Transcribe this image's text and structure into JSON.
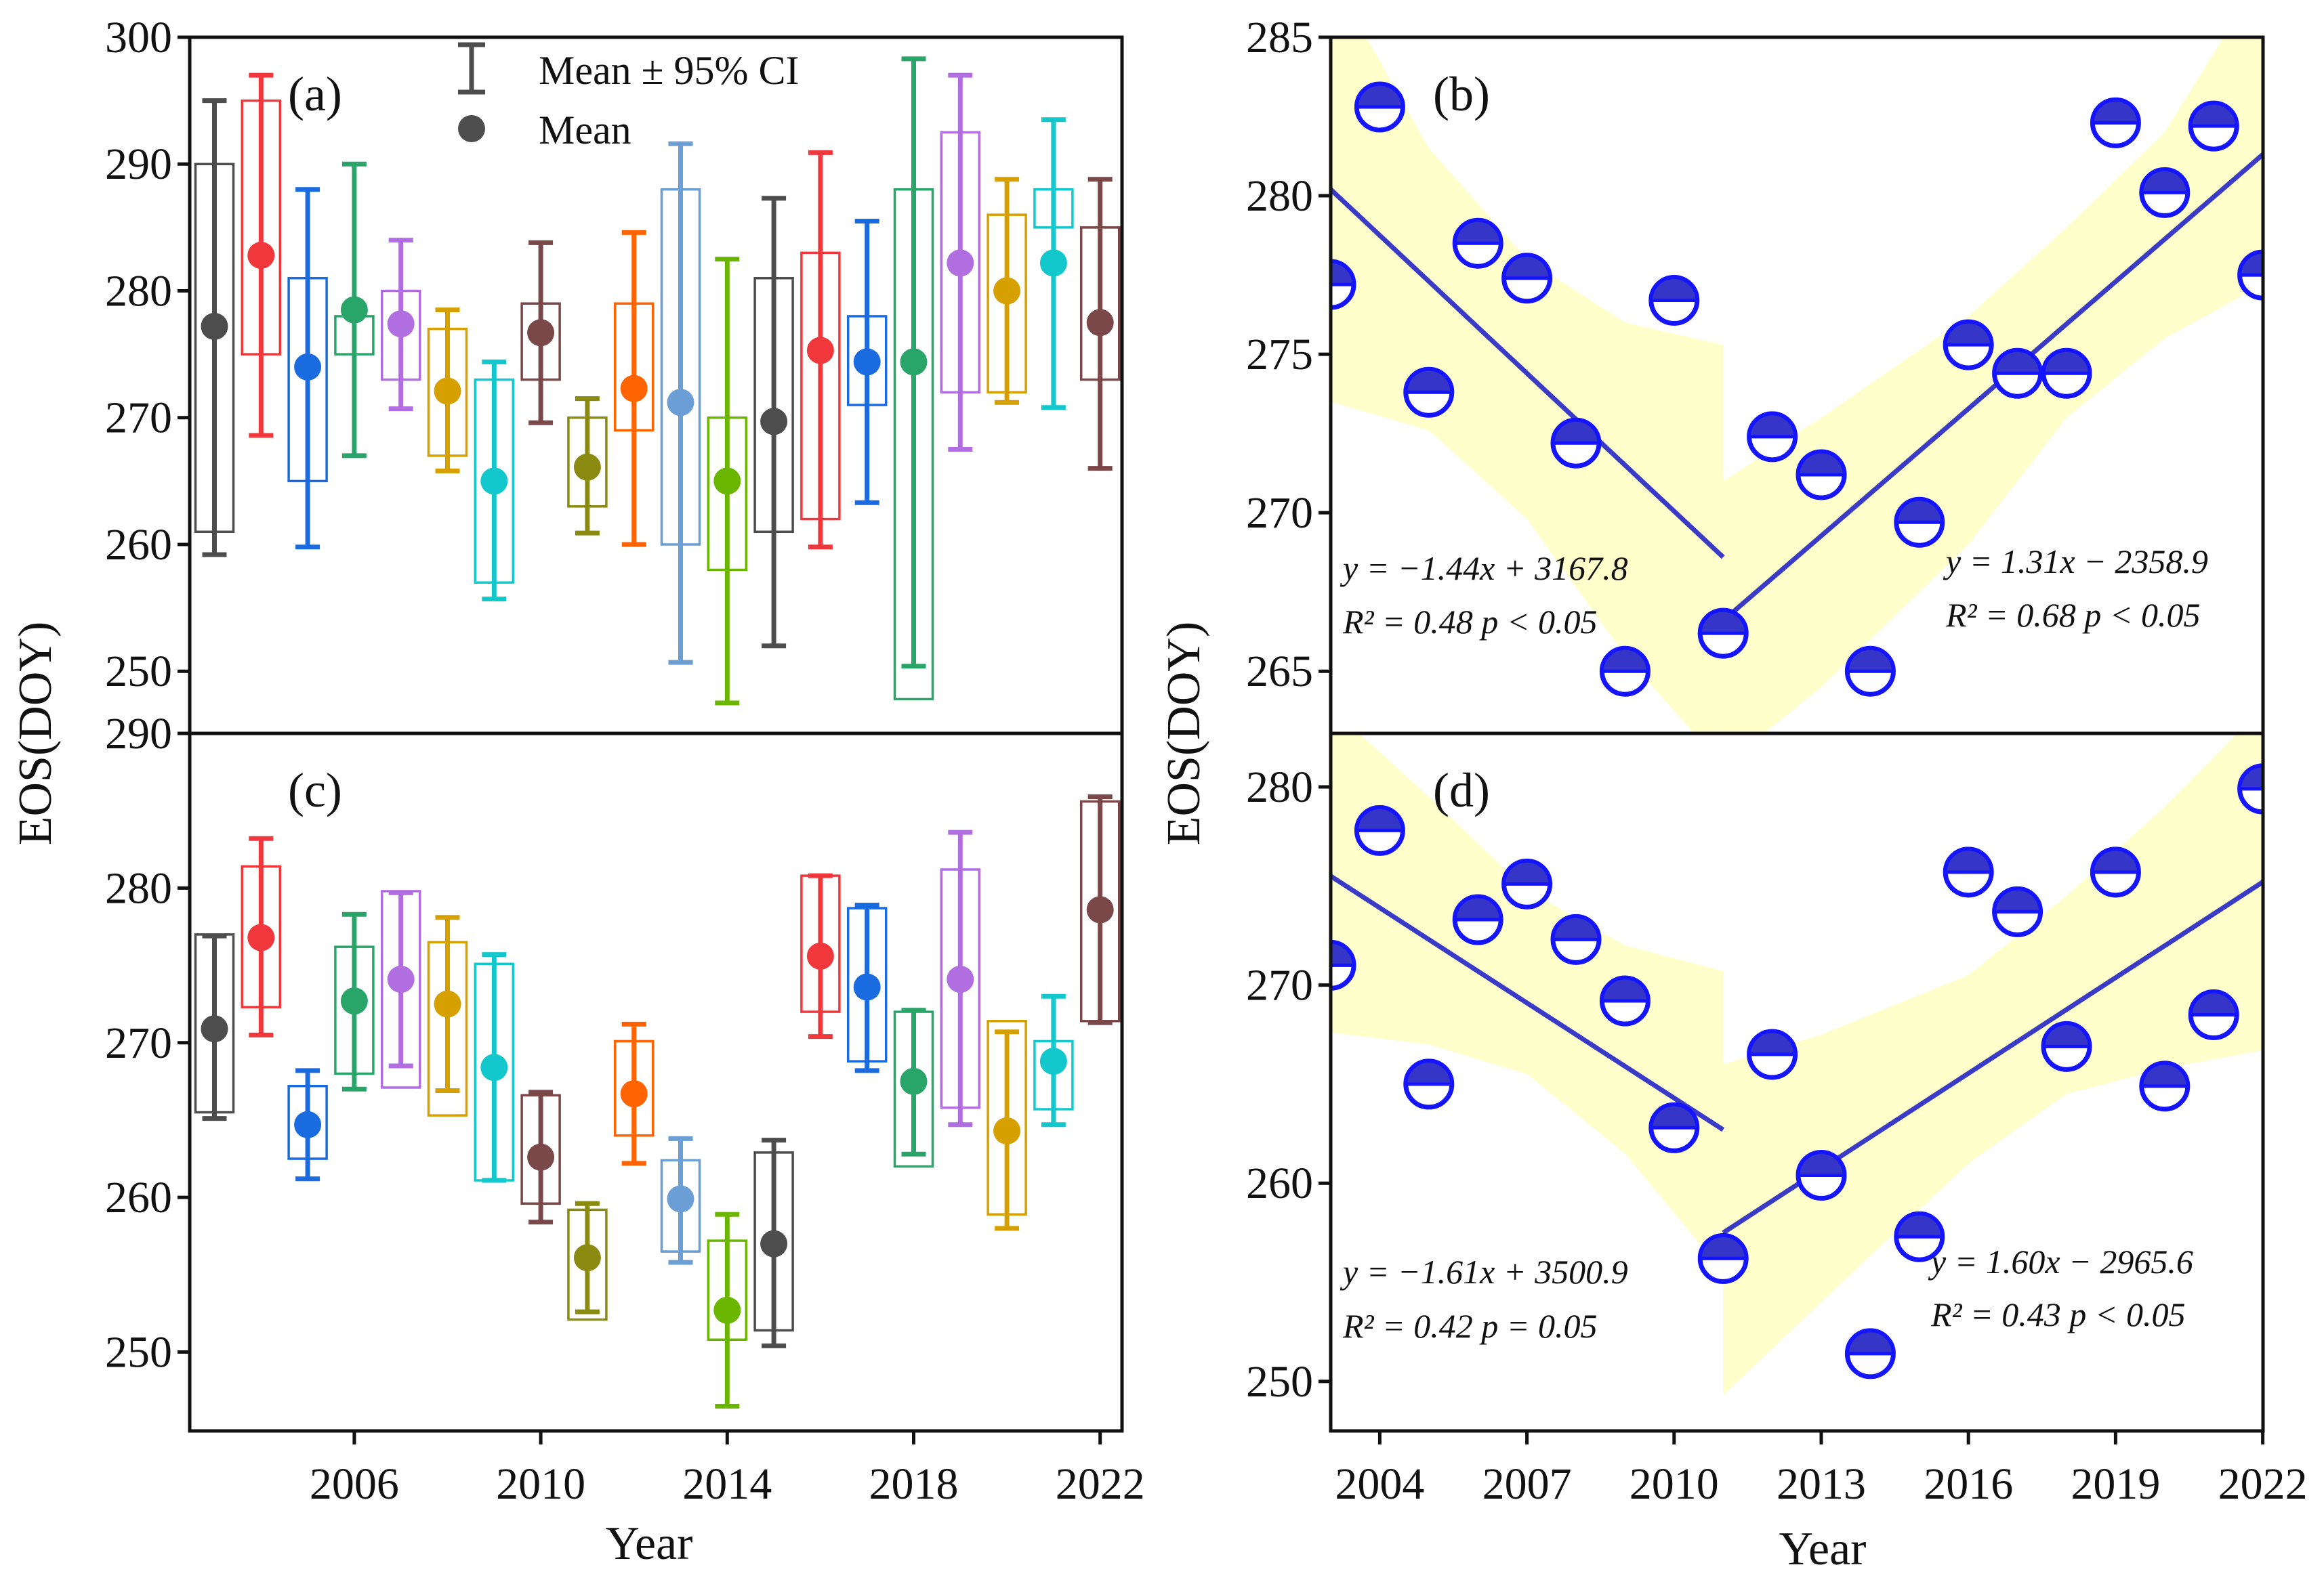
{
  "figure": {
    "y_axis_title": "EOS(DOY)",
    "x_axis_title": "Year",
    "legend": {
      "ci_label": "Mean ± 95% CI",
      "mean_label": "Mean"
    }
  },
  "chart_data": [
    {
      "id": "a",
      "label": "(a)",
      "type": "box",
      "ylim": [
        245.1,
        300
      ],
      "yticks": [
        250,
        260,
        270,
        280,
        290,
        300
      ],
      "years": [
        2003,
        2004,
        2005,
        2006,
        2007,
        2008,
        2009,
        2010,
        2011,
        2012,
        2013,
        2014,
        2015,
        2016,
        2017,
        2018,
        2019,
        2020,
        2021,
        2022
      ],
      "colors": [
        "#4d4d4d",
        "#f0383c",
        "#1a6be0",
        "#2aa56a",
        "#b06ee0",
        "#d6a000",
        "#12c8cc",
        "#7a4848",
        "#8a8a10",
        "#ff6400",
        "#6a9ed4",
        "#6ab600",
        "#4d4d4d",
        "#f0383c",
        "#1a6be0",
        "#2aa56a",
        "#b06ee0",
        "#d6a000",
        "#12c8cc",
        "#7a4848"
      ],
      "box_high": [
        290,
        295,
        281,
        278,
        280,
        277,
        273,
        279,
        270,
        279,
        288,
        270,
        281,
        283,
        278,
        288,
        292.5,
        286,
        288,
        285
      ],
      "box_low": [
        261,
        275,
        265,
        275,
        273,
        267,
        257,
        273,
        263,
        269,
        260,
        258,
        261,
        262,
        271,
        247.8,
        272,
        272,
        285,
        273
      ],
      "ci_high": [
        295,
        297,
        288,
        290,
        284,
        278.5,
        274.4,
        283.8,
        271.5,
        284.6,
        291.6,
        282.5,
        287.3,
        290.9,
        285.5,
        298.3,
        297,
        288.8,
        293.5,
        288.8
      ],
      "ci_low": [
        259.2,
        268.6,
        259.8,
        267,
        270.7,
        265.8,
        255.7,
        269.6,
        260.9,
        260,
        250.7,
        247.5,
        252,
        259.8,
        263.3,
        250.4,
        267.5,
        271.2,
        270.8,
        266
      ],
      "mean": [
        277.2,
        282.8,
        274,
        278.5,
        277.4,
        272.1,
        265,
        276.7,
        266.1,
        272.3,
        271.2,
        265,
        269.7,
        275.3,
        274.4,
        274.4,
        282.2,
        280,
        282.2,
        277.5
      ]
    },
    {
      "id": "c",
      "label": "(c)",
      "type": "box",
      "ylim": [
        244.9,
        290
      ],
      "yticks": [
        250,
        260,
        270,
        280,
        290
      ],
      "xticks": [
        2006,
        2010,
        2014,
        2018,
        2022
      ],
      "years": [
        2003,
        2004,
        2005,
        2006,
        2007,
        2008,
        2009,
        2010,
        2011,
        2012,
        2013,
        2014,
        2015,
        2016,
        2017,
        2018,
        2019,
        2020,
        2021,
        2022
      ],
      "colors": [
        "#4d4d4d",
        "#f0383c",
        "#1a6be0",
        "#2aa56a",
        "#b06ee0",
        "#d6a000",
        "#12c8cc",
        "#7a4848",
        "#8a8a10",
        "#ff6400",
        "#6a9ed4",
        "#6ab600",
        "#4d4d4d",
        "#f0383c",
        "#1a6be0",
        "#2aa56a",
        "#b06ee0",
        "#d6a000",
        "#12c8cc",
        "#7a4848"
      ],
      "box_high": [
        277,
        281.4,
        267.2,
        276.2,
        279.8,
        276.5,
        275.1,
        266.6,
        259.2,
        270.1,
        262.4,
        257.2,
        262.9,
        280.8,
        278.7,
        272,
        281.2,
        271.4,
        270.1,
        285.6
      ],
      "box_low": [
        265.5,
        272.3,
        262.5,
        268,
        267.1,
        265.3,
        261.1,
        259.6,
        252.1,
        264,
        256.5,
        250.8,
        251.4,
        272,
        268.8,
        262,
        265.8,
        258.9,
        265.7,
        271.4
      ],
      "ci_high": [
        276.9,
        283.2,
        268.2,
        278.3,
        279.7,
        278.1,
        275.7,
        266.8,
        259.6,
        271.2,
        263.8,
        258.9,
        263.7,
        280.8,
        278.9,
        272.1,
        283.6,
        270.7,
        273,
        285.9
      ],
      "ci_low": [
        265.1,
        270.5,
        261.2,
        267,
        268.5,
        266.9,
        261.1,
        258.4,
        252.6,
        262.2,
        255.8,
        246.5,
        250.4,
        270.4,
        268.2,
        262.8,
        264.7,
        258,
        264.7,
        271.3
      ],
      "mean": [
        270.9,
        276.8,
        264.7,
        272.7,
        274.1,
        272.5,
        268.4,
        262.6,
        256.1,
        266.7,
        259.9,
        252.7,
        257,
        275.6,
        273.6,
        267.5,
        274.1,
        264.3,
        268.8,
        278.6
      ]
    },
    {
      "id": "b",
      "label": "(b)",
      "type": "scatter",
      "ylim": [
        263.04,
        285
      ],
      "yticks": [
        265,
        270,
        275,
        280,
        285
      ],
      "x": [
        2003,
        2004,
        2005,
        2006,
        2007,
        2008,
        2009,
        2010,
        2011,
        2012,
        2013,
        2014,
        2015,
        2016,
        2017,
        2018,
        2019,
        2020,
        2021,
        2022
      ],
      "y": [
        277.2,
        282.8,
        273.8,
        278.5,
        277.4,
        272.2,
        265,
        276.7,
        266.2,
        272.4,
        271.2,
        265,
        269.7,
        275.3,
        274.4,
        274.4,
        282.3,
        280.1,
        282.2,
        277.5
      ],
      "fits": [
        {
          "x": [
            2003,
            2011
          ],
          "y": [
            280.2,
            268.6
          ],
          "equation": "y =  −1.44x + 3167.8",
          "stats": "R² = 0.48  p < 0.05",
          "band": {
            "x": [
              2003,
              2005,
              2007,
              2009,
              2011
            ],
            "upper": [
              287,
              281.5,
              278,
              276,
              275.3
            ],
            "lower": [
              273.5,
              272.6,
              269.8,
              265.5,
              262
            ]
          }
        },
        {
          "x": [
            2011,
            2022
          ],
          "y": [
            266.6,
            281.3
          ],
          "equation": "y =  1.31x − 2358.9",
          "stats": "R² = 0.68  p < 0.05",
          "band": {
            "x": [
              2011,
              2013,
              2016,
              2018,
              2020,
              2022
            ],
            "upper": [
              271,
              273,
              276.2,
              279,
              282,
              287
            ],
            "lower": [
              262,
              264.5,
              269,
              273,
              275.5,
              277.2
            ]
          }
        }
      ]
    },
    {
      "id": "d",
      "label": "(d)",
      "type": "scatter",
      "ylim": [
        247.5,
        282.7
      ],
      "yticks": [
        250,
        260,
        270,
        280
      ],
      "xticks": [
        2004,
        2007,
        2010,
        2013,
        2016,
        2019,
        2022
      ],
      "x": [
        2003,
        2004,
        2005,
        2006,
        2007,
        2008,
        2009,
        2010,
        2011,
        2012,
        2013,
        2014,
        2015,
        2016,
        2017,
        2018,
        2019,
        2020,
        2021,
        2022
      ],
      "y": [
        271,
        277.8,
        265,
        273.3,
        275.1,
        272.3,
        269.2,
        262.8,
        256.2,
        266.5,
        260.4,
        251.4,
        257.3,
        275.7,
        273.7,
        266.9,
        275.7,
        264.9,
        268.5,
        279.9
      ],
      "fits": [
        {
          "x": [
            2003,
            2011
          ],
          "y": [
            275.5,
            262.7
          ],
          "equation": "y =  −1.61x + 3500.9",
          "stats": "R² = 0.42  p = 0.05",
          "band": {
            "x": [
              2003,
              2005,
              2007,
              2009,
              2011
            ],
            "upper": [
              284,
              279.5,
              274.8,
              272,
              270.7
            ],
            "lower": [
              267.6,
              267,
              265.5,
              261.5,
              255.5
            ]
          }
        },
        {
          "x": [
            2011,
            2022
          ],
          "y": [
            257.5,
            275.2
          ],
          "equation": "y =  1.60x − 2965.6",
          "stats": "R² = 0.43  p < 0.05",
          "band": {
            "x": [
              2011,
              2013,
              2016,
              2018,
              2020,
              2022
            ],
            "upper": [
              266,
              267.5,
              270.5,
              274.5,
              279,
              284
            ],
            "lower": [
              249.3,
              254,
              261,
              264.5,
              265.8,
              266.7
            ]
          }
        }
      ]
    }
  ],
  "colors": {
    "marker_fill": "#3535c8",
    "marker_stroke": "#1414ff",
    "fit_line": "#3a3ac8",
    "band": "#ffffcc"
  }
}
